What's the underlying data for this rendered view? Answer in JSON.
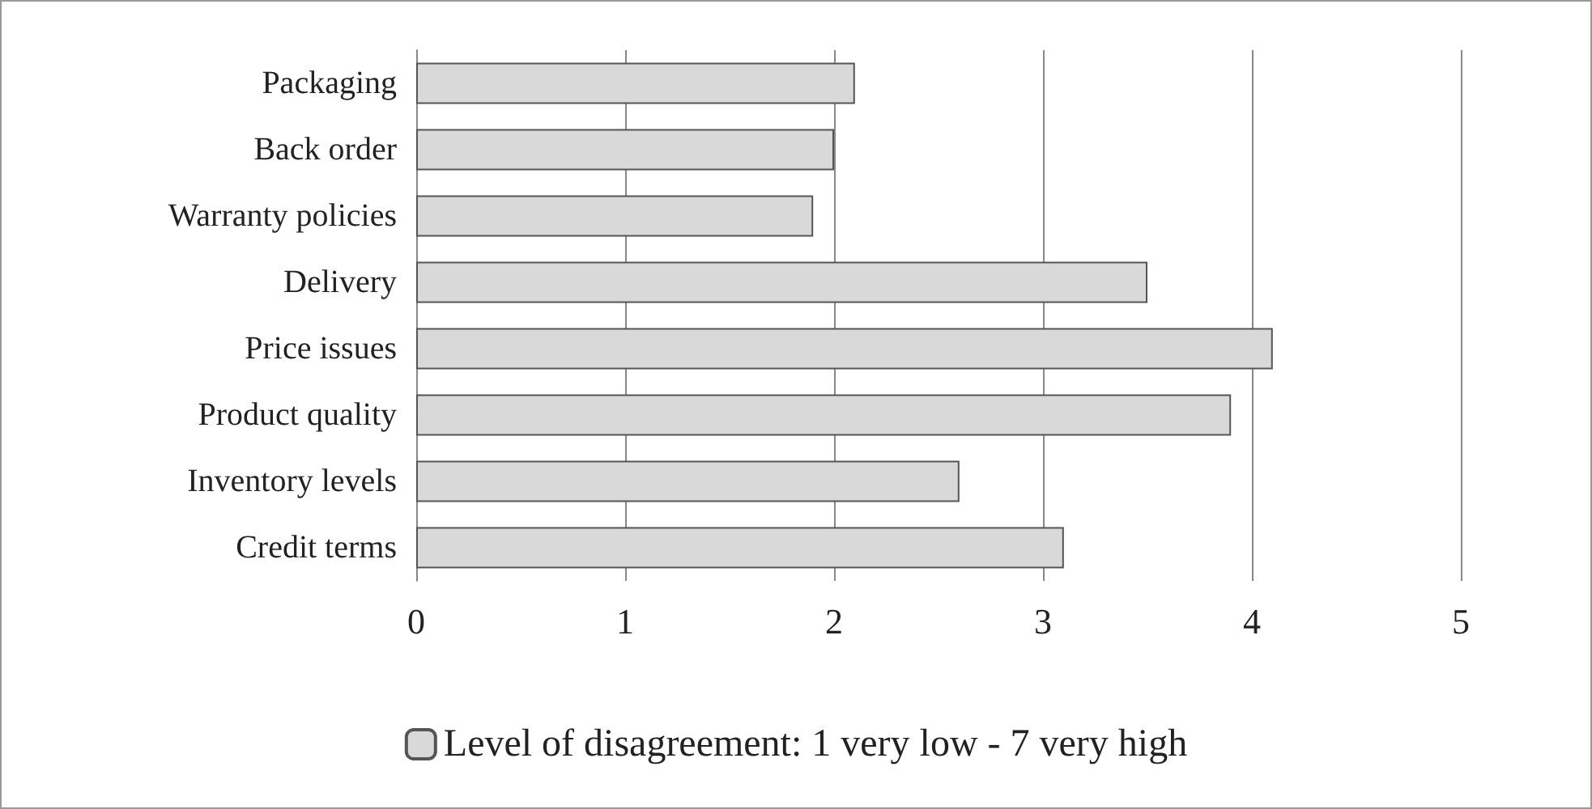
{
  "chart_data": {
    "type": "bar",
    "orientation": "horizontal",
    "categories": [
      "Packaging",
      "Back order",
      "Warranty policies",
      "Delivery",
      "Price issues",
      "Product quality",
      "Inventory levels",
      "Credit terms"
    ],
    "series": [
      {
        "name": "Level of disagreement: 1 very low - 7 very high",
        "color": "#d9d9d9",
        "values": [
          2.1,
          2.0,
          1.9,
          3.5,
          4.1,
          3.9,
          2.6,
          3.1
        ]
      }
    ],
    "xlim": [
      0,
      5
    ],
    "xticks": [
      0,
      1,
      2,
      3,
      4,
      5
    ],
    "grid": "x",
    "legend": "bottom"
  }
}
